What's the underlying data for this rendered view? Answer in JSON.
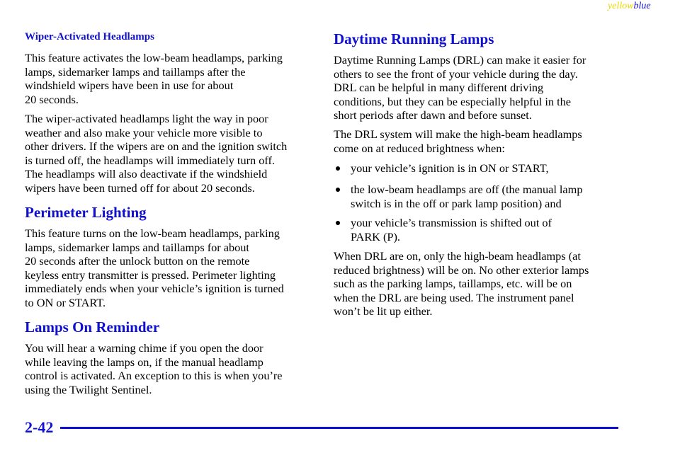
{
  "header": {
    "tag_yellow": "yellow",
    "tag_blue": "blue"
  },
  "wiper_section": {
    "heading": "Wiper-Activated Headlamps",
    "paragraphs": [
      [
        "This feature activates the low-beam headlamps, parking",
        "lamps, sidemarker lamps and taillamps after the",
        "windshield wipers have been in use for about",
        "20 seconds."
      ],
      [
        "The wiper-activated headlamps light the way in poor",
        "weather and also make your vehicle more visible to",
        "other drivers. If the wipers are on and the ignition switch",
        "is turned off, the headlamps will immediately turn off.",
        "The headlamps will also deactivate if the windshield",
        "wipers have been turned off for about 20 seconds."
      ]
    ]
  },
  "perimeter_section": {
    "heading": "Perimeter Lighting",
    "paragraphs": [
      [
        "This feature turns on the low-beam headlamps, parking",
        "lamps, sidemarker lamps and taillamps for about",
        "20 seconds after the unlock button on the remote",
        "keyless entry transmitter is pressed. Perimeter lighting",
        "immediately ends when your vehicle’s ignition is turned",
        "to ON or START."
      ]
    ]
  },
  "reminder_section": {
    "heading": "Lamps On Reminder",
    "paragraphs": [
      [
        "You will hear a warning chime if you open the door",
        "while leaving the lamps on, if the manual headlamp",
        "control is activated. An exception to this is when you’re",
        "using the Twilight Sentinel."
      ]
    ]
  },
  "drl_section": {
    "heading": "Daytime Running Lamps",
    "paragraphs": [
      [
        "Daytime Running Lamps (DRL) can make it easier for",
        "others to see the front of your vehicle during the day.",
        "DRL can be helpful in many different driving",
        "conditions, but they can be especially helpful in the",
        "short periods after dawn and before sunset."
      ],
      [
        "The DRL system will make the high-beam headlamps",
        "come on at reduced brightness when:"
      ]
    ],
    "bullets": [
      [
        "your vehicle’s ignition is in ON or START,"
      ],
      [
        "the low-beam headlamps are off (the manual lamp",
        "switch is in the off or park lamp position) and"
      ],
      [
        "your vehicle’s transmission is shifted out of",
        "PARK (P)."
      ]
    ],
    "closing": [
      [
        "When DRL are on, only the high-beam headlamps (at",
        "reduced brightness) will be on. No other exterior lamps",
        "such as the parking lamps, taillamps, etc. will be on",
        "when the DRL are being used. The instrument panel",
        "won’t be lit up either."
      ]
    ]
  },
  "footer": {
    "page_number": "2-42"
  }
}
